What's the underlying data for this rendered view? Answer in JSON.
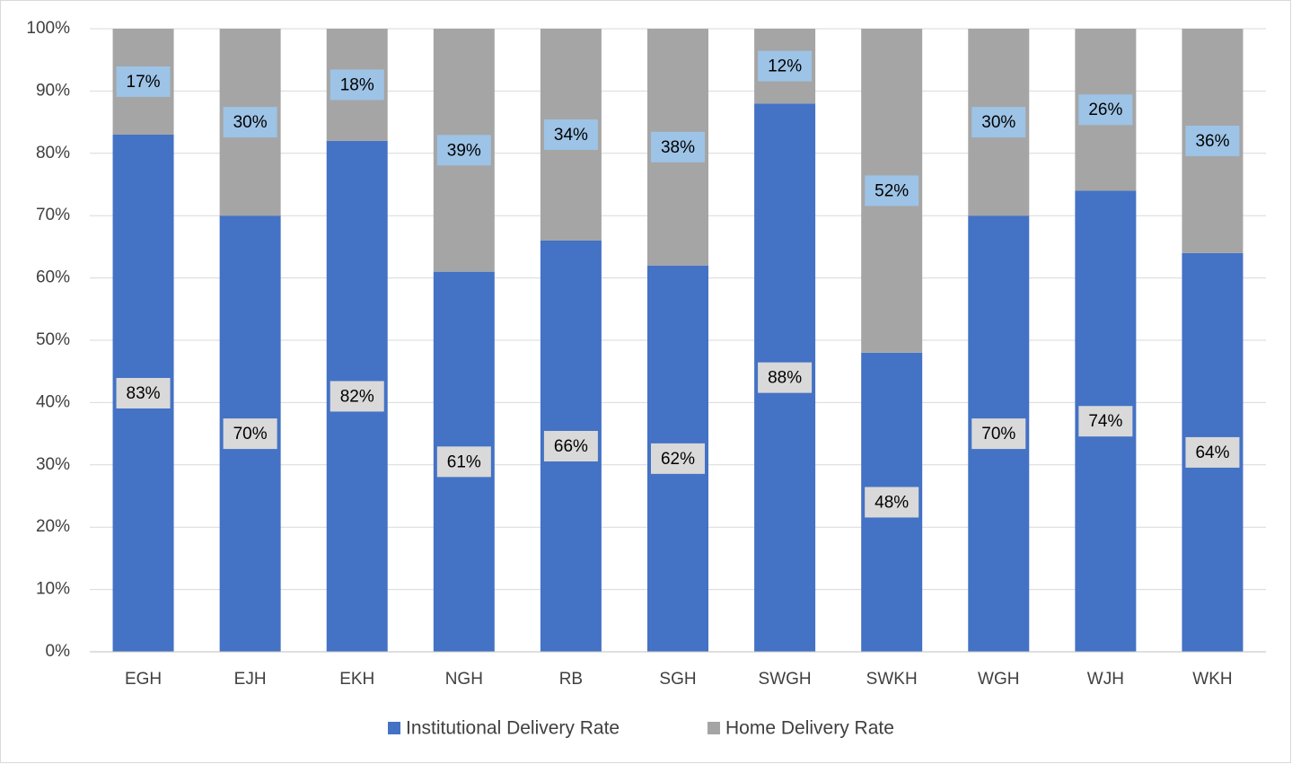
{
  "chart_data": {
    "type": "bar",
    "stacked": true,
    "categories": [
      "EGH",
      "EJH",
      "EKH",
      "NGH",
      "RB",
      "SGH",
      "SWGH",
      "SWKH",
      "WGH",
      "WJH",
      "WKH"
    ],
    "series": [
      {
        "name": "Institutional Delivery Rate",
        "color": "#4472c4",
        "values": [
          83,
          70,
          82,
          61,
          66,
          62,
          88,
          48,
          70,
          74,
          64
        ],
        "value_labels": [
          "83%",
          "70%",
          "82%",
          "61%",
          "66%",
          "62%",
          "88%",
          "48%",
          "70%",
          "74%",
          "64%"
        ]
      },
      {
        "name": "Home Delivery Rate",
        "color": "#a5a5a5",
        "values": [
          17,
          30,
          18,
          39,
          34,
          38,
          12,
          52,
          30,
          26,
          36
        ],
        "value_labels": [
          "17%",
          "30%",
          "18%",
          "39%",
          "34%",
          "38%",
          "12%",
          "52%",
          "30%",
          "26%",
          "36%"
        ]
      }
    ],
    "ylim": [
      0,
      100
    ],
    "yticks": [
      {
        "value": 0,
        "label": "0%"
      },
      {
        "value": 10,
        "label": "10%"
      },
      {
        "value": 20,
        "label": "20%"
      },
      {
        "value": 30,
        "label": "30%"
      },
      {
        "value": 40,
        "label": "40%"
      },
      {
        "value": 50,
        "label": "50%"
      },
      {
        "value": 60,
        "label": "60%"
      },
      {
        "value": 70,
        "label": "70%"
      },
      {
        "value": 80,
        "label": "80%"
      },
      {
        "value": 90,
        "label": "90%"
      },
      {
        "value": 100,
        "label": "100%"
      }
    ],
    "grid": true,
    "legend": "bottom"
  }
}
